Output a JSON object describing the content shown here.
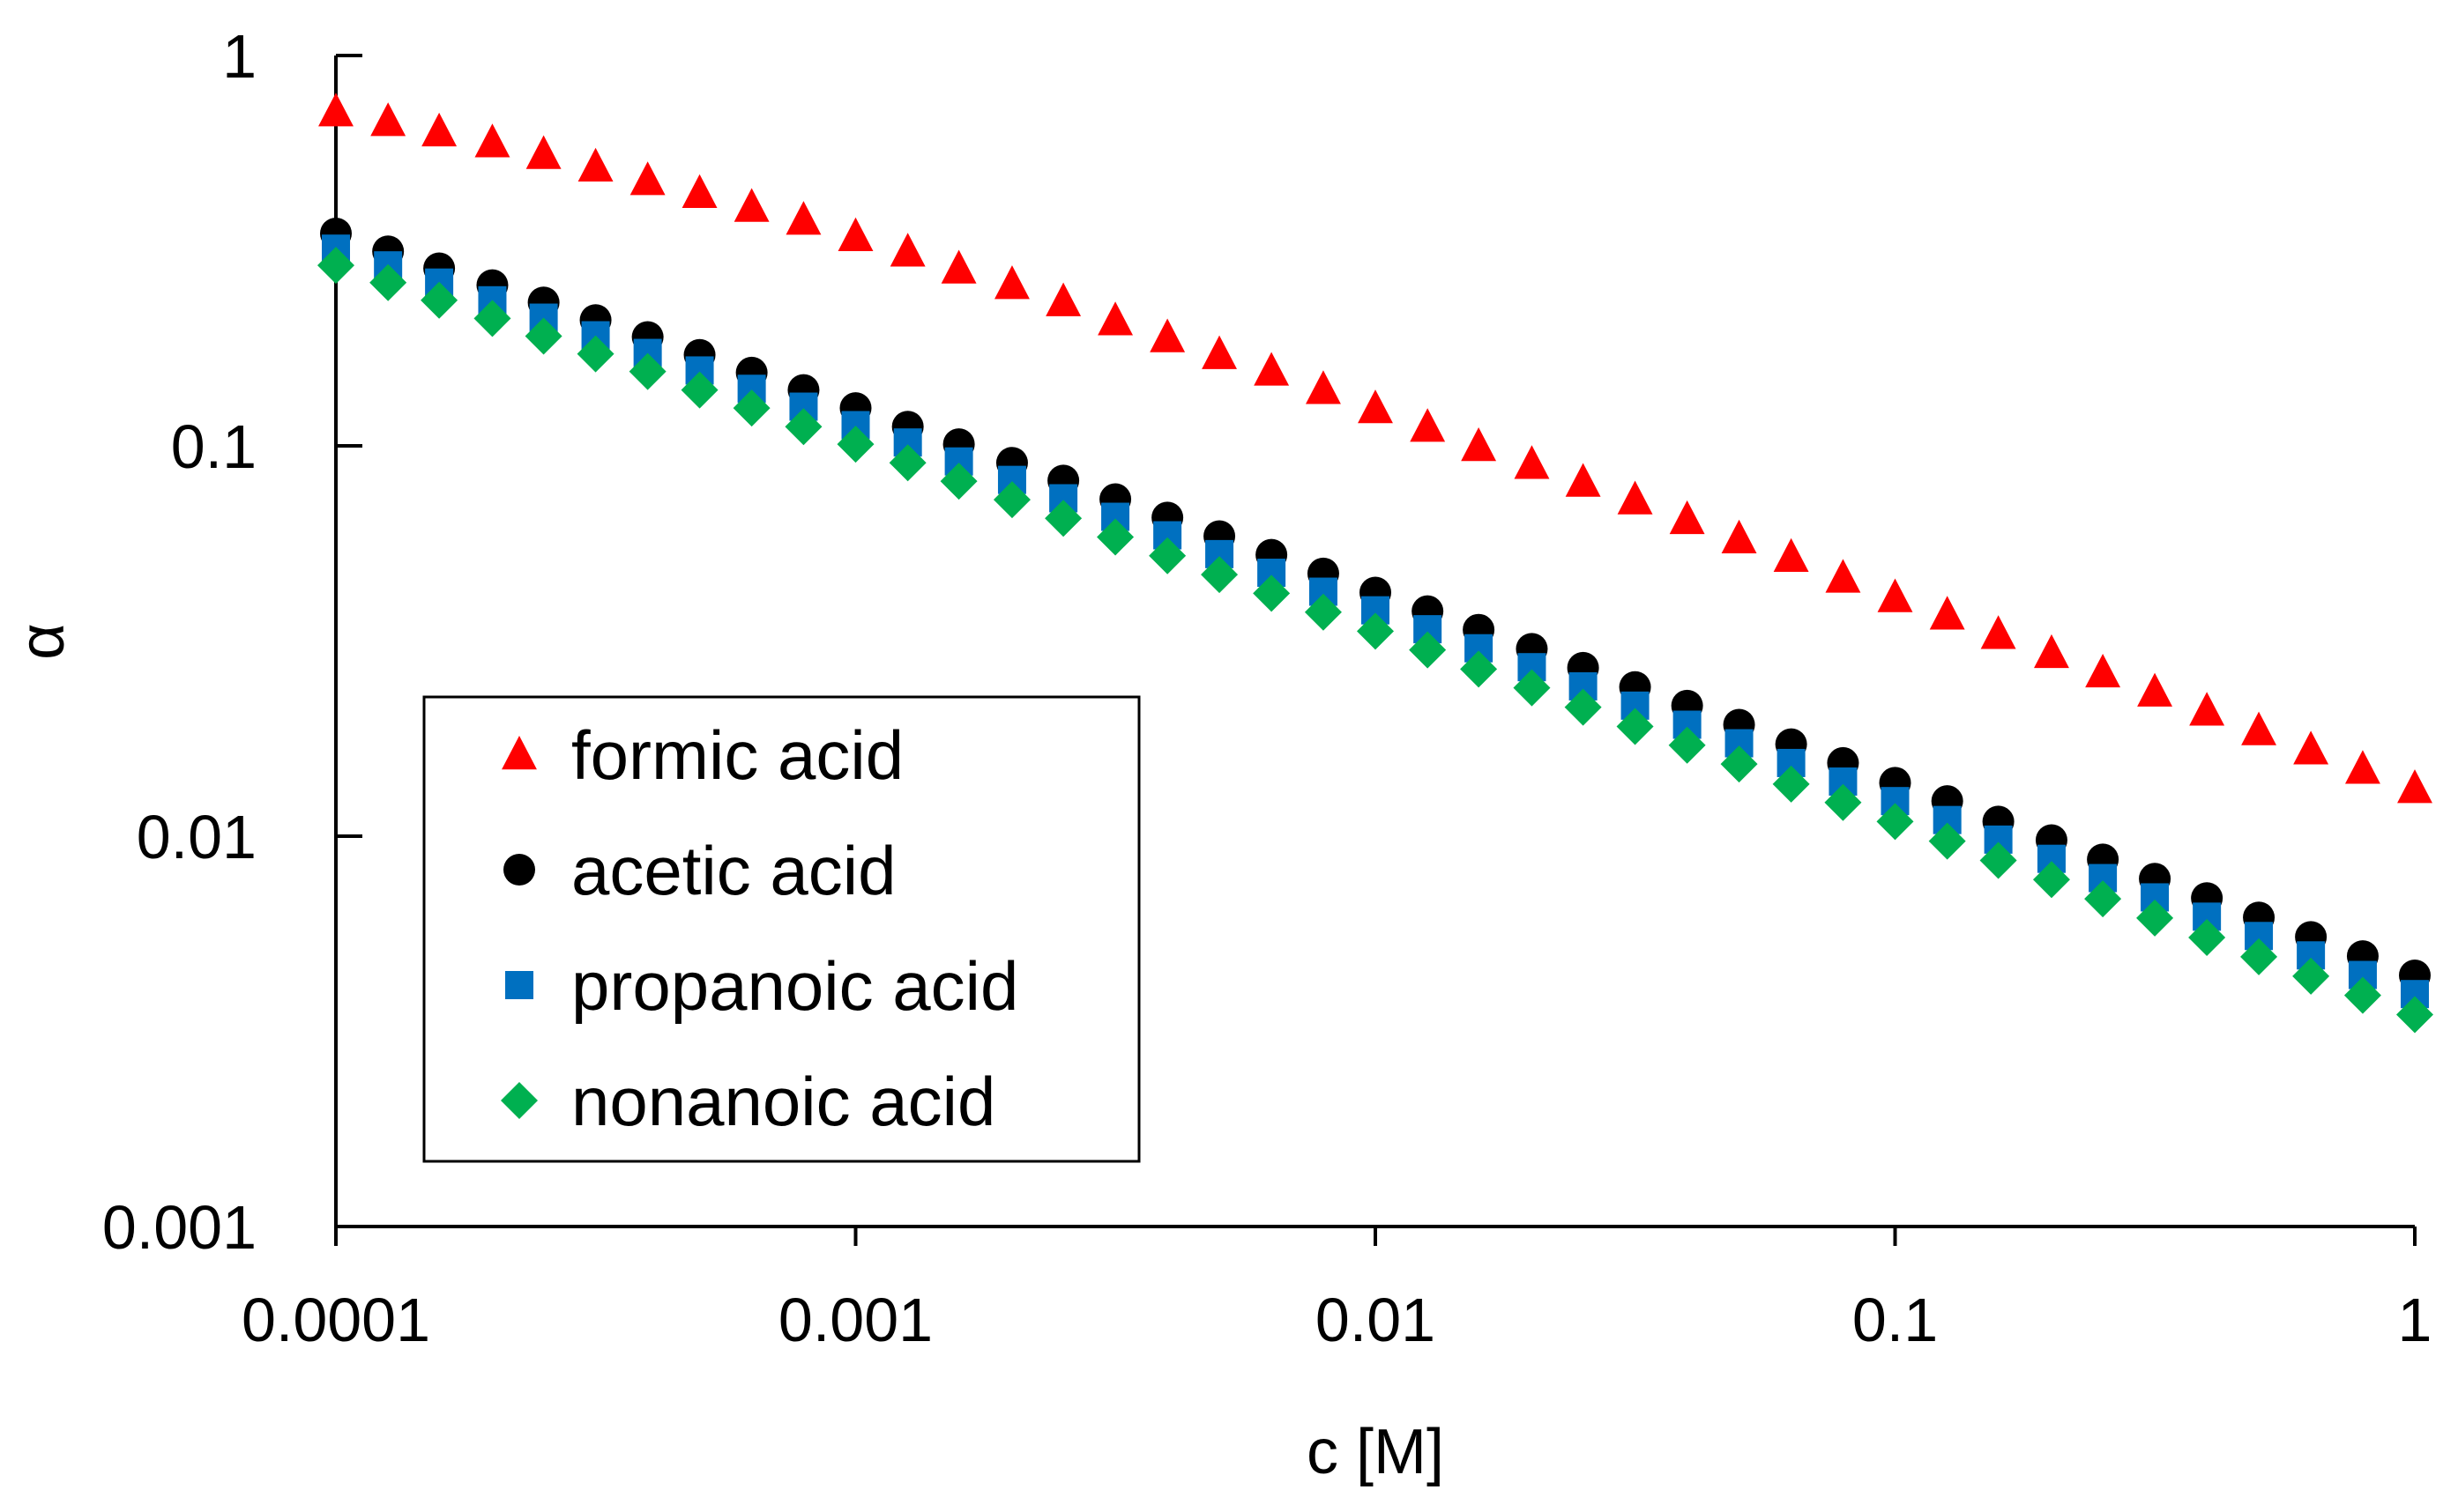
{
  "chart_data": {
    "type": "scatter",
    "title": "",
    "xlabel": "c [M]",
    "ylabel": "α",
    "x_scale": "log",
    "y_scale": "log",
    "xlim": [
      0.0001,
      1
    ],
    "ylim": [
      0.001,
      1
    ],
    "x_ticks": [
      {
        "value": 0.0001,
        "label": "0.0001"
      },
      {
        "value": 0.001,
        "label": "0.001"
      },
      {
        "value": 0.01,
        "label": "0.01"
      },
      {
        "value": 0.1,
        "label": "0.1"
      },
      {
        "value": 1,
        "label": "1"
      }
    ],
    "y_ticks": [
      {
        "value": 0.001,
        "label": "0.001"
      },
      {
        "value": 0.01,
        "label": "0.01"
      },
      {
        "value": 0.1,
        "label": "0.1"
      },
      {
        "value": 1,
        "label": "1"
      }
    ],
    "grid": false,
    "legend_position": "bottom-left inside",
    "x": [
      0.0001,
      0.000126,
      0.000158,
      0.0002,
      0.000251,
      0.000316,
      0.000398,
      0.000501,
      0.000631,
      0.000794,
      0.001,
      0.00126,
      0.00158,
      0.002,
      0.00251,
      0.00316,
      0.00398,
      0.00501,
      0.00631,
      0.00794,
      0.01,
      0.0126,
      0.0158,
      0.02,
      0.0251,
      0.0316,
      0.0398,
      0.0501,
      0.0631,
      0.0794,
      0.1,
      0.126,
      0.158,
      0.2,
      0.251,
      0.316,
      0.398,
      0.501,
      0.631,
      0.794,
      1
    ],
    "series": [
      {
        "name": "formic acid",
        "marker": "triangle",
        "color": "#ff0000",
        "values": [
          0.72,
          0.68,
          0.64,
          0.6,
          0.56,
          0.52,
          0.48,
          0.445,
          0.41,
          0.38,
          0.345,
          0.315,
          0.285,
          0.26,
          0.235,
          0.21,
          0.19,
          0.172,
          0.156,
          0.14,
          0.125,
          0.112,
          0.1,
          0.09,
          0.081,
          0.073,
          0.065,
          0.058,
          0.052,
          0.046,
          0.041,
          0.037,
          0.033,
          0.0295,
          0.0263,
          0.0235,
          0.021,
          0.0187,
          0.0167,
          0.0149,
          0.0133
        ]
      },
      {
        "name": "acetic acid",
        "marker": "circle",
        "color": "#000000",
        "values": [
          0.35,
          0.315,
          0.285,
          0.258,
          0.233,
          0.21,
          0.19,
          0.171,
          0.154,
          0.139,
          0.125,
          0.112,
          0.101,
          0.0905,
          0.0815,
          0.073,
          0.0655,
          0.0587,
          0.0526,
          0.0471,
          0.0421,
          0.0377,
          0.0338,
          0.0302,
          0.027,
          0.0241,
          0.0216,
          0.0193,
          0.0172,
          0.0154,
          0.0137,
          0.0123,
          0.0109,
          0.00977,
          0.00872,
          0.00778,
          0.00694,
          0.00619,
          0.00552,
          0.00493,
          0.0044
        ]
      },
      {
        "name": "propanoic acid",
        "marker": "square",
        "color": "#0070c0",
        "values": [
          0.32,
          0.29,
          0.262,
          0.236,
          0.213,
          0.192,
          0.173,
          0.156,
          0.14,
          0.126,
          0.113,
          0.102,
          0.0912,
          0.0818,
          0.0734,
          0.0658,
          0.059,
          0.0528,
          0.0473,
          0.0423,
          0.0379,
          0.0339,
          0.0303,
          0.0271,
          0.0242,
          0.0216,
          0.0193,
          0.0173,
          0.0154,
          0.0138,
          0.0123,
          0.011,
          0.0098,
          0.00875,
          0.00781,
          0.00697,
          0.00622,
          0.00555,
          0.00495,
          0.00441,
          0.00394
        ]
      },
      {
        "name": "nonanoic acid",
        "marker": "diamond",
        "color": "#00b050",
        "values": [
          0.29,
          0.262,
          0.236,
          0.212,
          0.191,
          0.172,
          0.155,
          0.139,
          0.125,
          0.112,
          0.101,
          0.0905,
          0.0812,
          0.0728,
          0.0652,
          0.0584,
          0.0523,
          0.0468,
          0.0419,
          0.0375,
          0.0335,
          0.03,
          0.0268,
          0.024,
          0.0214,
          0.0191,
          0.0171,
          0.0153,
          0.0136,
          0.0122,
          0.0109,
          0.00971,
          0.00867,
          0.00774,
          0.00691,
          0.00617,
          0.0055,
          0.00491,
          0.00438,
          0.00391,
          0.00349
        ]
      }
    ]
  }
}
